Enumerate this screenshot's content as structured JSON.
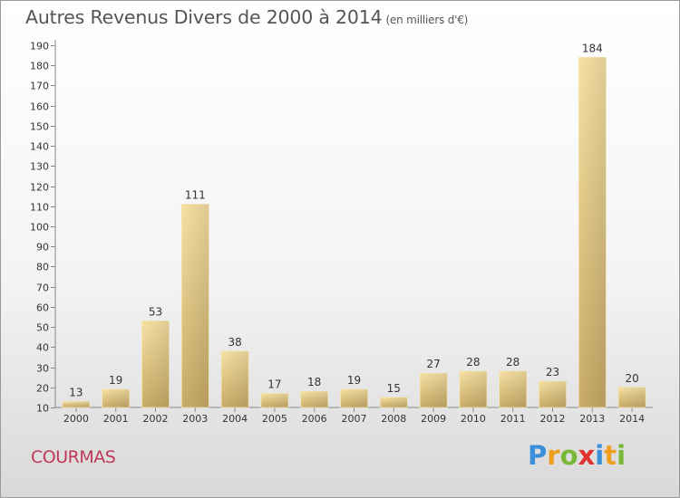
{
  "title": {
    "main": "Autres Revenus Divers de 2000 à 2014",
    "unit": "(en milliers d'€)"
  },
  "commune": "COURMAS",
  "logo": {
    "text": "Proxiti",
    "colors": [
      "#3b8ed8",
      "#f0a020",
      "#7ab83a",
      "#e03030",
      "#3b8ed8",
      "#f0a020",
      "#7ab83a"
    ]
  },
  "chart_data": {
    "type": "bar",
    "title": "Autres Revenus Divers de 2000 à 2014",
    "subtitle": "(en milliers d'€)",
    "categories": [
      "2000",
      "2001",
      "2002",
      "2003",
      "2004",
      "2005",
      "2006",
      "2007",
      "2008",
      "2009",
      "2010",
      "2011",
      "2012",
      "2013",
      "2014"
    ],
    "values": [
      13,
      19,
      53,
      111,
      38,
      17,
      18,
      19,
      15,
      27,
      28,
      28,
      23,
      184,
      20
    ],
    "value_labels": [
      "13",
      "19",
      "53",
      "111",
      "38",
      "17",
      "18",
      "19",
      "15",
      "27",
      "28",
      "28",
      "23",
      "184",
      "20"
    ],
    "ylim": [
      10,
      190
    ],
    "yticks": [
      10,
      20,
      30,
      40,
      50,
      60,
      70,
      80,
      90,
      100,
      110,
      120,
      130,
      140,
      150,
      160,
      170,
      180,
      190
    ],
    "grid": false,
    "bar_color": "#e8cc86"
  }
}
